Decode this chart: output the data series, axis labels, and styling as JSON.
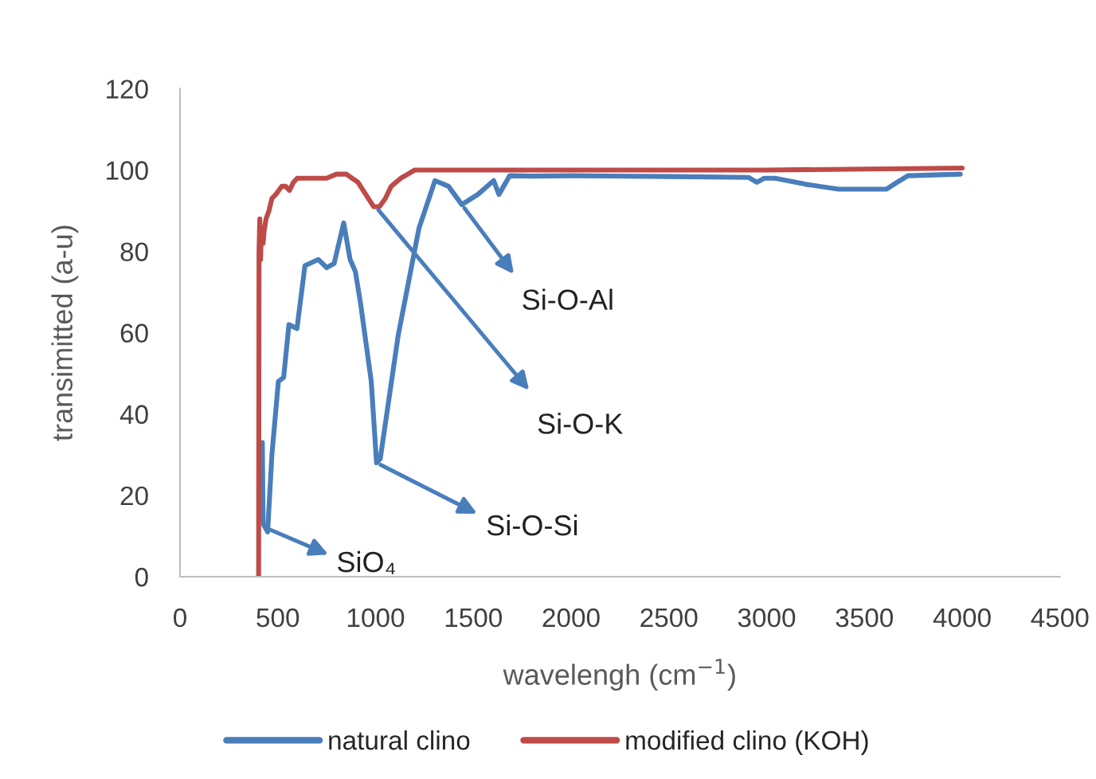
{
  "chart_data": {
    "type": "line",
    "xlabel": "wavelengh (cm$^{−1}$)",
    "ylabel": "transimitted (a-u)",
    "xlim": [
      0,
      4500
    ],
    "xticks": [
      0,
      500,
      1000,
      1500,
      2000,
      2500,
      3000,
      3500,
      4000,
      4500
    ],
    "ylim": [
      0,
      120
    ],
    "yticks": [
      0,
      20,
      40,
      60,
      80,
      100,
      120
    ],
    "grid": false,
    "legend": "bottom",
    "marker": "none",
    "line_style": "solid",
    "series": [
      {
        "name": "natural clino",
        "color": "#4a7ebb",
        "x": [
          421,
          425,
          448,
          470,
          503,
          530,
          557,
          598,
          639,
          707,
          750,
          788,
          837,
          870,
          897,
          924,
          978,
          1005,
          1024,
          1116,
          1222,
          1304,
          1373,
          1441,
          1523,
          1604,
          1631,
          1686,
          1800,
          2000,
          2500,
          2907,
          2950,
          2988,
          3042,
          3200,
          3368,
          3613,
          3654,
          3722,
          3990
        ],
        "values": [
          33,
          13,
          11,
          30,
          48,
          49,
          62,
          61,
          76.5,
          78,
          76,
          77,
          87,
          78,
          75,
          67,
          48,
          28,
          29,
          59.4,
          85.7,
          97.4,
          96,
          91.5,
          94,
          97.4,
          94,
          98.6,
          98.5,
          98.6,
          98.4,
          98.2,
          97,
          98,
          98,
          96.5,
          95.3,
          95.3,
          96.6,
          98.6,
          99
        ]
      },
      {
        "name": "modified clino (KOH)",
        "color": "#be4b48",
        "x": [
          402,
          404,
          408,
          412,
          416,
          425,
          430,
          440,
          455,
          470,
          490,
          520,
          540,
          560,
          580,
          600,
          650,
          700,
          750,
          800,
          850,
          880,
          910,
          950,
          990,
          1020,
          1050,
          1080,
          1130,
          1200,
          1300,
          2000,
          3000,
          4000
        ],
        "values": [
          0,
          80,
          88,
          78,
          85,
          82,
          85,
          88,
          90,
          93,
          94,
          96,
          96,
          95,
          97,
          98,
          98,
          98,
          98,
          99,
          99,
          98,
          97,
          94,
          91,
          91,
          93,
          96,
          98,
          100,
          100,
          100,
          100,
          100.5
        ]
      }
    ],
    "annotations": [
      {
        "text": "SiO₄",
        "x": 440,
        "y": 12
      },
      {
        "text": "Si-O-Si",
        "x": 1005,
        "y": 28
      },
      {
        "text": "Si-O-K",
        "x": 1000,
        "y": 91
      },
      {
        "text": "Si-O-Al",
        "x": 1441,
        "y": 91.5
      }
    ]
  }
}
